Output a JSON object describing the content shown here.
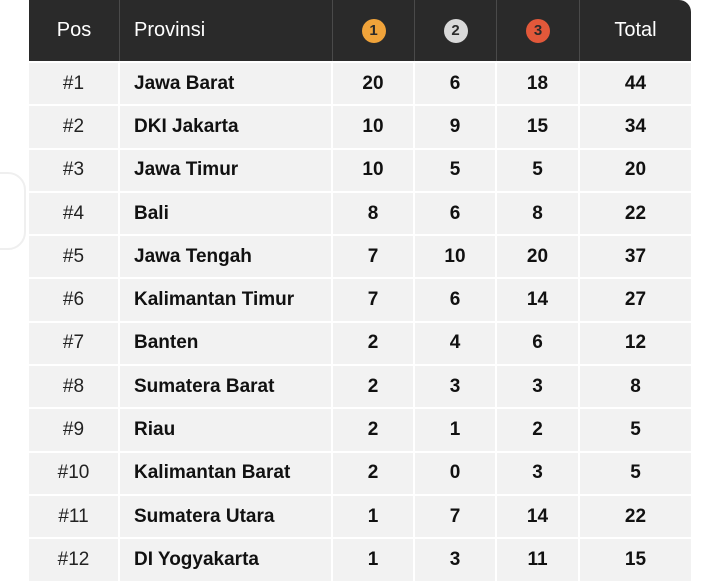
{
  "header": {
    "pos": "Pos",
    "provinsi": "Provinsi",
    "gold": "1",
    "silver": "2",
    "bronze": "3",
    "total": "Total"
  },
  "colors": {
    "header_bg": "#2a2a2a",
    "gold": "#f0a33a",
    "silver": "#d9d9d9",
    "bronze": "#e2583a"
  },
  "rows": [
    {
      "pos": "#1",
      "provinsi": "Jawa Barat",
      "gold": "20",
      "silver": "6",
      "bronze": "18",
      "total": "44"
    },
    {
      "pos": "#2",
      "provinsi": "DKI Jakarta",
      "gold": "10",
      "silver": "9",
      "bronze": "15",
      "total": "34"
    },
    {
      "pos": "#3",
      "provinsi": "Jawa Timur",
      "gold": "10",
      "silver": "5",
      "bronze": "5",
      "total": "20"
    },
    {
      "pos": "#4",
      "provinsi": "Bali",
      "gold": "8",
      "silver": "6",
      "bronze": "8",
      "total": "22"
    },
    {
      "pos": "#5",
      "provinsi": "Jawa Tengah",
      "gold": "7",
      "silver": "10",
      "bronze": "20",
      "total": "37"
    },
    {
      "pos": "#6",
      "provinsi": "Kalimantan Timur",
      "gold": "7",
      "silver": "6",
      "bronze": "14",
      "total": "27"
    },
    {
      "pos": "#7",
      "provinsi": "Banten",
      "gold": "2",
      "silver": "4",
      "bronze": "6",
      "total": "12"
    },
    {
      "pos": "#8",
      "provinsi": "Sumatera Barat",
      "gold": "2",
      "silver": "3",
      "bronze": "3",
      "total": "8"
    },
    {
      "pos": "#9",
      "provinsi": "Riau",
      "gold": "2",
      "silver": "1",
      "bronze": "2",
      "total": "5"
    },
    {
      "pos": "#10",
      "provinsi": "Kalimantan Barat",
      "gold": "2",
      "silver": "0",
      "bronze": "3",
      "total": "5"
    },
    {
      "pos": "#11",
      "provinsi": "Sumatera Utara",
      "gold": "1",
      "silver": "7",
      "bronze": "14",
      "total": "22"
    },
    {
      "pos": "#12",
      "provinsi": "DI Yogyakarta",
      "gold": "1",
      "silver": "3",
      "bronze": "11",
      "total": "15"
    }
  ]
}
